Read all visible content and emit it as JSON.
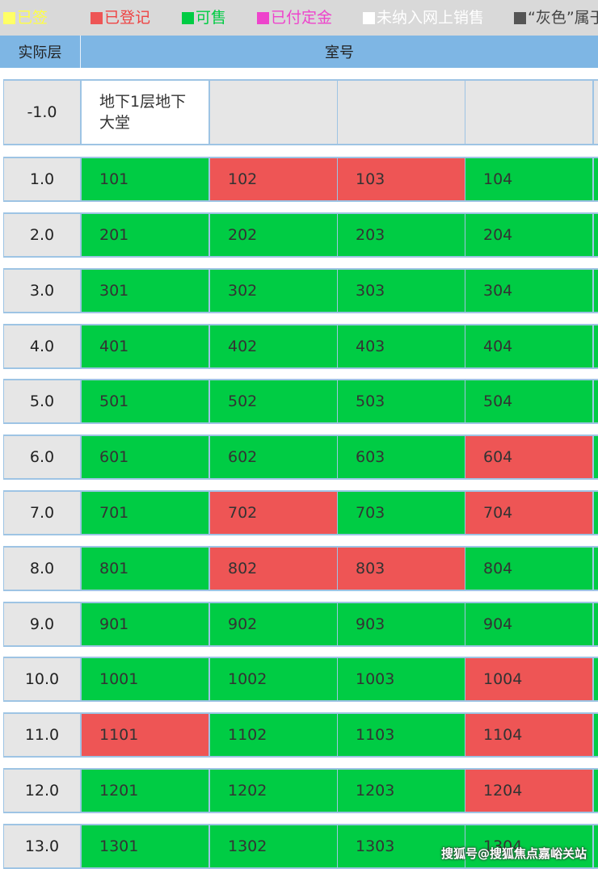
{
  "legend": [
    {
      "label": "已签",
      "color": "#ffff66"
    },
    {
      "label": "已登记",
      "color": "#ee5555"
    },
    {
      "label": "可售",
      "color": "#00cc44"
    },
    {
      "label": "已付定金",
      "color": "#ee44cc"
    },
    {
      "label": "未纳入网上销售",
      "color": "#ffffff"
    },
    {
      "label": "“灰色”属于",
      "color": "#555555"
    }
  ],
  "header": {
    "floor": "实际层",
    "room": "室号"
  },
  "status_colors": {
    "sale": "#00cc44",
    "registered": "#ee5555",
    "unlisted": "#ffffff",
    "empty": "#e6e6e6"
  },
  "rows": [
    {
      "floor": "-1.0",
      "rooms": [
        {
          "no": "地下1层地下大堂",
          "status": "unlisted"
        },
        {
          "no": "",
          "status": "empty"
        },
        {
          "no": "",
          "status": "empty"
        },
        {
          "no": "",
          "status": "empty"
        }
      ]
    },
    {
      "floor": "1.0",
      "rooms": [
        {
          "no": "101",
          "status": "sale"
        },
        {
          "no": "102",
          "status": "registered"
        },
        {
          "no": "103",
          "status": "registered"
        },
        {
          "no": "104",
          "status": "sale"
        }
      ]
    },
    {
      "floor": "2.0",
      "rooms": [
        {
          "no": "201",
          "status": "sale"
        },
        {
          "no": "202",
          "status": "sale"
        },
        {
          "no": "203",
          "status": "sale"
        },
        {
          "no": "204",
          "status": "sale"
        }
      ]
    },
    {
      "floor": "3.0",
      "rooms": [
        {
          "no": "301",
          "status": "sale"
        },
        {
          "no": "302",
          "status": "sale"
        },
        {
          "no": "303",
          "status": "sale"
        },
        {
          "no": "304",
          "status": "sale"
        }
      ]
    },
    {
      "floor": "4.0",
      "rooms": [
        {
          "no": "401",
          "status": "sale"
        },
        {
          "no": "402",
          "status": "sale"
        },
        {
          "no": "403",
          "status": "sale"
        },
        {
          "no": "404",
          "status": "sale"
        }
      ]
    },
    {
      "floor": "5.0",
      "rooms": [
        {
          "no": "501",
          "status": "sale"
        },
        {
          "no": "502",
          "status": "sale"
        },
        {
          "no": "503",
          "status": "sale"
        },
        {
          "no": "504",
          "status": "sale"
        }
      ]
    },
    {
      "floor": "6.0",
      "rooms": [
        {
          "no": "601",
          "status": "sale"
        },
        {
          "no": "602",
          "status": "sale"
        },
        {
          "no": "603",
          "status": "sale"
        },
        {
          "no": "604",
          "status": "registered"
        }
      ]
    },
    {
      "floor": "7.0",
      "rooms": [
        {
          "no": "701",
          "status": "sale"
        },
        {
          "no": "702",
          "status": "registered"
        },
        {
          "no": "703",
          "status": "sale"
        },
        {
          "no": "704",
          "status": "registered"
        }
      ]
    },
    {
      "floor": "8.0",
      "rooms": [
        {
          "no": "801",
          "status": "sale"
        },
        {
          "no": "802",
          "status": "registered"
        },
        {
          "no": "803",
          "status": "registered"
        },
        {
          "no": "804",
          "status": "sale"
        }
      ]
    },
    {
      "floor": "9.0",
      "rooms": [
        {
          "no": "901",
          "status": "sale"
        },
        {
          "no": "902",
          "status": "sale"
        },
        {
          "no": "903",
          "status": "sale"
        },
        {
          "no": "904",
          "status": "sale"
        }
      ]
    },
    {
      "floor": "10.0",
      "rooms": [
        {
          "no": "1001",
          "status": "sale"
        },
        {
          "no": "1002",
          "status": "sale"
        },
        {
          "no": "1003",
          "status": "sale"
        },
        {
          "no": "1004",
          "status": "registered"
        }
      ]
    },
    {
      "floor": "11.0",
      "rooms": [
        {
          "no": "1101",
          "status": "registered"
        },
        {
          "no": "1102",
          "status": "sale"
        },
        {
          "no": "1103",
          "status": "sale"
        },
        {
          "no": "1104",
          "status": "registered"
        }
      ]
    },
    {
      "floor": "12.0",
      "rooms": [
        {
          "no": "1201",
          "status": "sale"
        },
        {
          "no": "1202",
          "status": "sale"
        },
        {
          "no": "1203",
          "status": "sale"
        },
        {
          "no": "1204",
          "status": "registered"
        }
      ]
    },
    {
      "floor": "13.0",
      "rooms": [
        {
          "no": "1301",
          "status": "sale"
        },
        {
          "no": "1302",
          "status": "sale"
        },
        {
          "no": "1303",
          "status": "sale"
        },
        {
          "no": "1304",
          "status": "sale"
        }
      ]
    }
  ],
  "watermark": "搜狐号@搜狐焦点嘉峪关站"
}
